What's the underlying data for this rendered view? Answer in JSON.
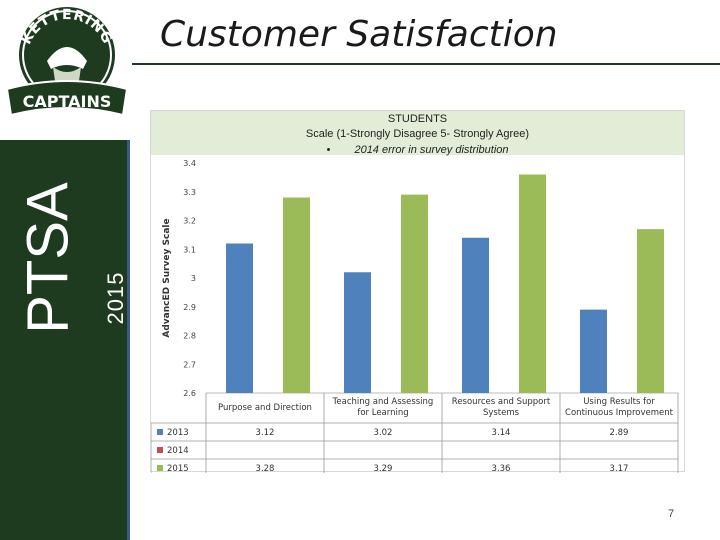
{
  "slide": {
    "title": "Customer Satisfaction",
    "side_label": "PTSA",
    "side_year": "2015",
    "page_number": "7"
  },
  "logo": {
    "top_text": "KETTERING",
    "bottom_text": "CAPTAINS"
  },
  "chart_header": {
    "line1": "STUDENTS",
    "line2": "Scale (1-Strongly Disagree 5- Strongly Agree)",
    "bullet": "•",
    "line3": "2014 error in survey distribution"
  },
  "colors": {
    "sidebar": "#1e3a1f",
    "series_2013": "#4f81bd",
    "series_2014": "#c0504d",
    "series_2015": "#9bbb59"
  },
  "chart_data": {
    "type": "bar",
    "ylabel": "AdvancED Survey Scale",
    "ylim": [
      2.6,
      3.4
    ],
    "yticks": [
      "2.6",
      "2.7",
      "2.8",
      "2.9",
      "3",
      "3.1",
      "3.2",
      "3.3",
      "3.4"
    ],
    "grid": false,
    "categories": [
      [
        "Purpose and Direction"
      ],
      [
        "Teaching and Assessing",
        "for Learning"
      ],
      [
        "Resources and Support",
        "Systems"
      ],
      [
        "Using Results for",
        "Continuous Improvement"
      ]
    ],
    "series": [
      {
        "name": "2013",
        "values": [
          3.12,
          3.02,
          3.14,
          2.89
        ],
        "labels": [
          "3.12",
          "3.02",
          "3.14",
          "2.89"
        ]
      },
      {
        "name": "2014",
        "values": [
          null,
          null,
          null,
          null
        ],
        "labels": [
          "",
          "",
          "",
          ""
        ]
      },
      {
        "name": "2015",
        "values": [
          3.28,
          3.29,
          3.36,
          3.17
        ],
        "labels": [
          "3.28",
          "3.29",
          "3.36",
          "3.17"
        ]
      }
    ]
  }
}
